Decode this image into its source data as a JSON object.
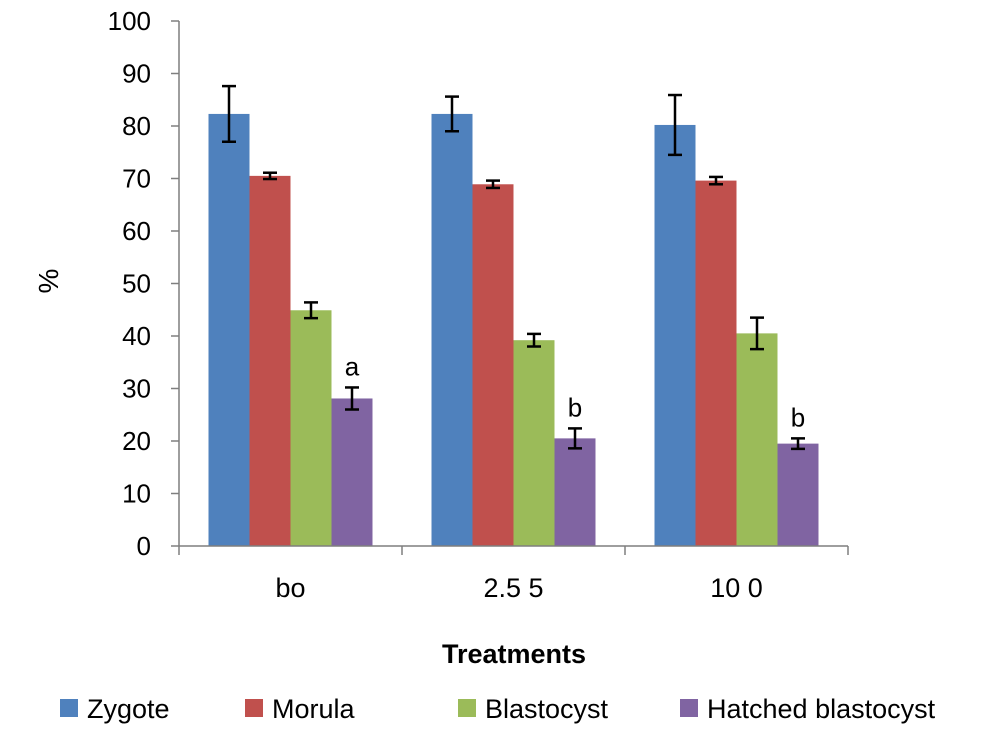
{
  "chart_data": {
    "type": "bar",
    "title": "",
    "xlabel": "Treatments",
    "ylabel": "%",
    "ylim": [
      0,
      100
    ],
    "yticks": [
      "0",
      "10",
      "20",
      "30",
      "40",
      "50",
      "60",
      "70",
      "80",
      "90",
      "100"
    ],
    "categories": [
      "bo",
      "2.5 5",
      "10 0"
    ],
    "grid": false,
    "legend_position": "bottom",
    "series": [
      {
        "name": "Zygote",
        "color": "#4F81BD",
        "values": [
          82.3,
          82.3,
          80.2
        ],
        "errors": [
          5.3,
          3.3,
          5.7
        ]
      },
      {
        "name": "Morula",
        "color": "#C0504D",
        "values": [
          70.5,
          68.9,
          69.6
        ],
        "errors": [
          0.6,
          0.7,
          0.7
        ]
      },
      {
        "name": "Blastocyst",
        "color": "#9BBB59",
        "values": [
          44.9,
          39.2,
          40.5
        ],
        "errors": [
          1.5,
          1.2,
          3.0
        ]
      },
      {
        "name": "Hatched blastocyst",
        "color": "#8064A2",
        "values": [
          28.1,
          20.5,
          19.5
        ],
        "errors": [
          2.1,
          1.9,
          1.0
        ],
        "annotations": [
          "a",
          "b",
          "b"
        ]
      }
    ]
  }
}
